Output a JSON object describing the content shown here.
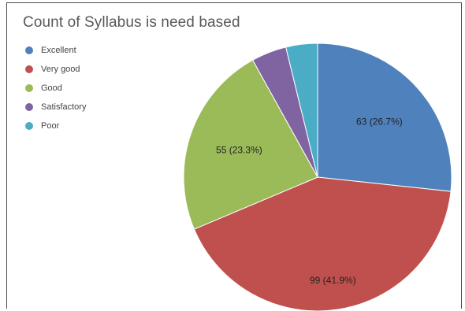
{
  "chart_data": {
    "type": "pie",
    "title": "Count of Syllabus is need based",
    "legend_position": "top-left",
    "slices": [
      {
        "name": "Excellent",
        "value": 63,
        "label": "63 (26.7%)",
        "color": "#4F81BD"
      },
      {
        "name": "Very good",
        "value": 99,
        "label": "99 (41.9%)",
        "color": "#C0504D"
      },
      {
        "name": "Good",
        "value": 55,
        "label": "55 (23.3%)",
        "color": "#9BBB59"
      },
      {
        "name": "Satisfactory",
        "value": 10,
        "label": "",
        "color": "#8064A2"
      },
      {
        "name": "Poor",
        "value": 9,
        "label": "",
        "color": "#4BACC6"
      }
    ]
  }
}
